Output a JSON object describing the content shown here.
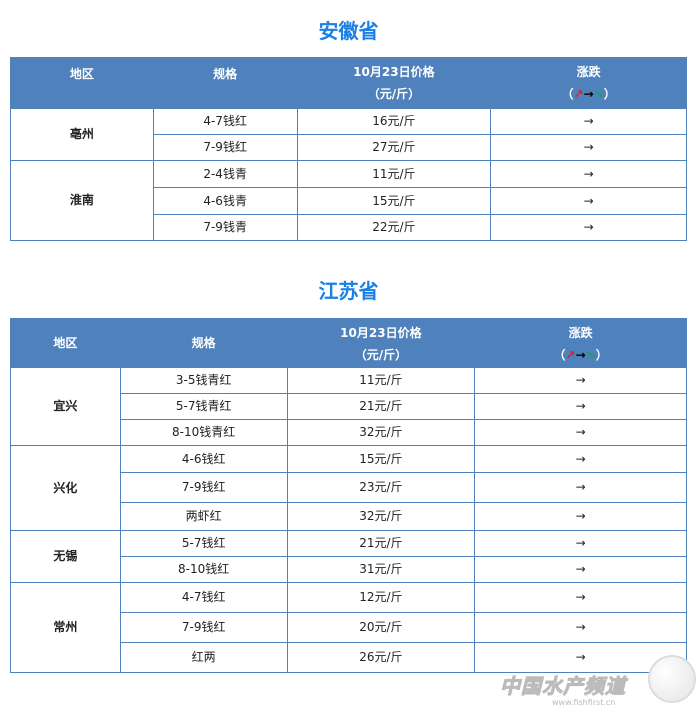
{
  "header": {
    "region": "地区",
    "spec": "规格",
    "price": "10月23日价格",
    "unit": "（元/斤）",
    "trend": "涨跌",
    "legend_open": "（",
    "legend_up": "↗",
    "legend_flat": "→",
    "legend_down": "↘",
    "legend_close": "）"
  },
  "colors": {
    "title": "#1a7fe6",
    "header_bg": "#4f81bd",
    "up": "#e02020",
    "down": "#20a050"
  },
  "sections": [
    {
      "title": "安徽省",
      "groups": [
        {
          "region": "亳州",
          "rows": [
            [
              "4-7钱红",
              "16元/斤",
              "→"
            ],
            [
              "7-9钱红",
              "27元/斤",
              "→"
            ]
          ]
        },
        {
          "region": "淮南",
          "rows": [
            [
              "2-4钱青",
              "11元/斤",
              "→"
            ],
            [
              "4-6钱青",
              "15元/斤",
              "→"
            ],
            [
              "7-9钱青",
              "22元/斤",
              "→"
            ]
          ]
        }
      ]
    },
    {
      "title": "江苏省",
      "groups": [
        {
          "region": "宜兴",
          "rows": [
            [
              "3-5钱青红",
              "11元/斤",
              "→"
            ],
            [
              "5-7钱青红",
              "21元/斤",
              "→"
            ],
            [
              "8-10钱青红",
              "32元/斤",
              "→"
            ]
          ]
        },
        {
          "region": "兴化",
          "rows": [
            [
              "4-6钱红",
              "15元/斤",
              "→"
            ],
            [
              "7-9钱红",
              "23元/斤",
              "→"
            ],
            [
              "两虾红",
              "32元/斤",
              "→"
            ]
          ]
        },
        {
          "region": "无锡",
          "rows": [
            [
              "5-7钱红",
              "21元/斤",
              "→"
            ],
            [
              "8-10钱红",
              "31元/斤",
              "→"
            ]
          ]
        },
        {
          "region": "常州",
          "rows": [
            [
              "4-7钱红",
              "12元/斤",
              "→"
            ],
            [
              "7-9钱红",
              "20元/斤",
              "→"
            ],
            [
              "红两",
              "26元/斤",
              "→"
            ]
          ]
        }
      ]
    }
  ],
  "watermark": {
    "text": "中国水产频道",
    "url": "www.fishfirst.cn"
  }
}
